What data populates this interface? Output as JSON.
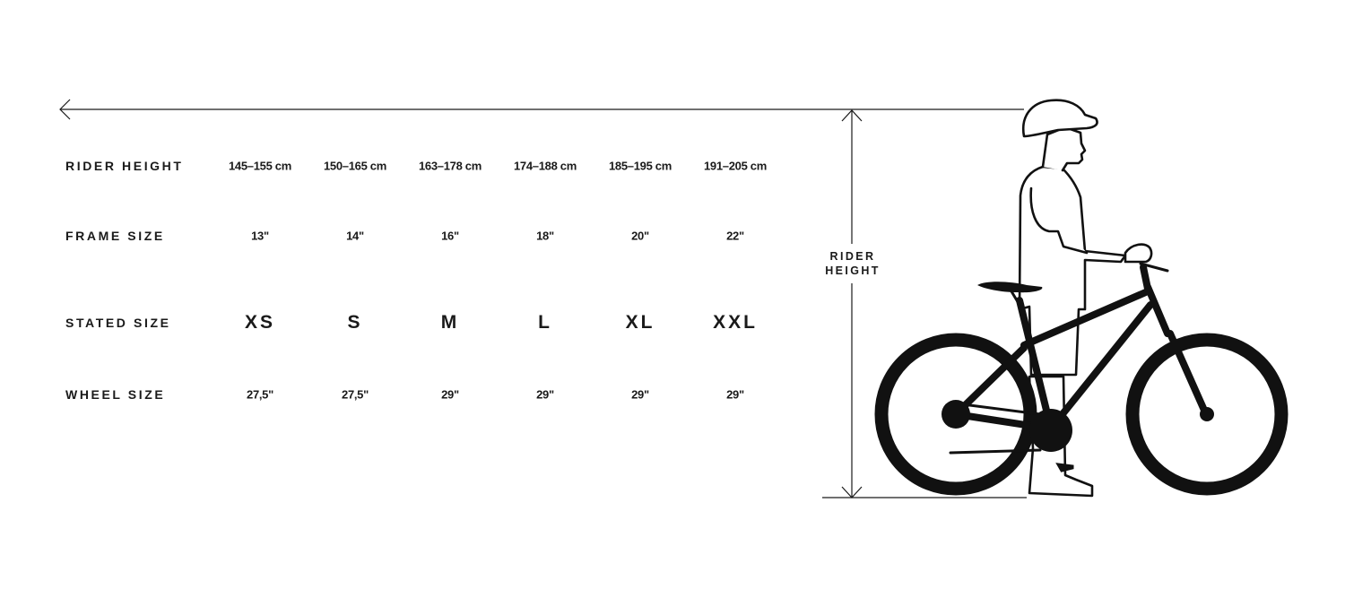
{
  "rows": [
    {
      "label": "RIDER HEIGHT",
      "values": [
        "145–155 cm",
        "150–165 cm",
        "163–178 cm",
        "174–188 cm",
        "185–195 cm",
        "191–205 cm"
      ]
    },
    {
      "label": "FRAME SIZE",
      "values": [
        "13\"",
        "14\"",
        "16\"",
        "18\"",
        "20\"",
        "22\""
      ]
    },
    {
      "label": "STATED SIZE",
      "values": [
        "XS",
        "S",
        "M",
        "L",
        "XL",
        "XXL"
      ]
    },
    {
      "label": "WHEEL SIZE",
      "values": [
        "27,5\"",
        "27,5\"",
        "29\"",
        "29\"",
        "29\"",
        "29\""
      ]
    }
  ],
  "illustration": {
    "measure_label_line1": "RIDER",
    "measure_label_line2": "HEIGHT",
    "icons": [
      "arrow-left-icon",
      "rider-height-arrow-icon",
      "rider-with-bike-illustration"
    ]
  }
}
